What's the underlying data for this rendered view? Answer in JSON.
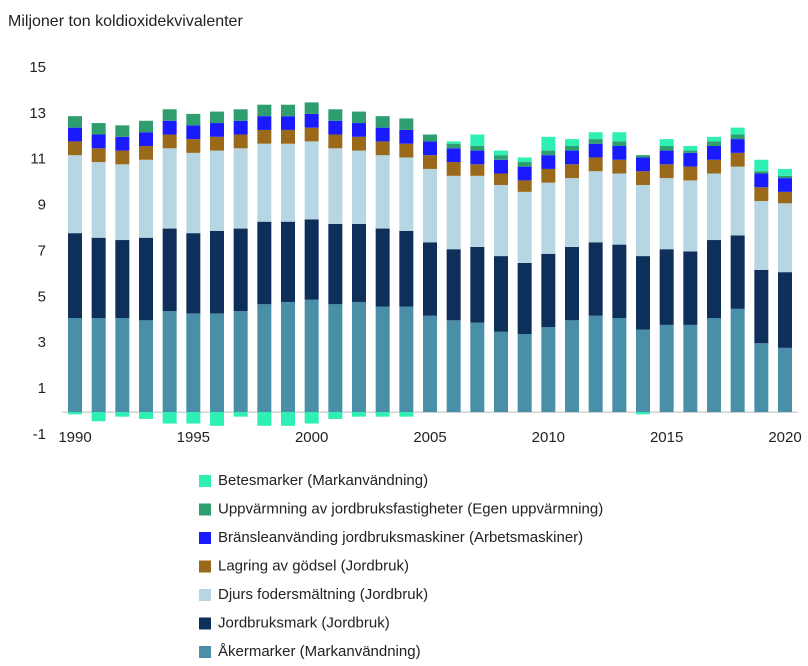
{
  "chart_data": {
    "type": "stacked_bar",
    "title": "Miljoner ton koldioxidekvivalenter",
    "categories": [
      1990,
      null,
      null,
      null,
      null,
      1995,
      null,
      null,
      null,
      null,
      2000,
      null,
      null,
      null,
      null,
      2005,
      null,
      null,
      null,
      null,
      2010,
      null,
      null,
      null,
      null,
      2015,
      null,
      null,
      null,
      null,
      2020
    ],
    "ylim": [
      -1,
      15
    ],
    "yticks": [
      -1,
      1,
      3,
      5,
      7,
      9,
      11,
      13,
      15
    ],
    "grid": false,
    "legend": "bottom",
    "series": [
      {
        "name": "Betesmarker (Markanvändning)",
        "color": "#2ef0b4",
        "values": [
          -0.1,
          -0.4,
          -0.2,
          -0.3,
          -0.5,
          -0.5,
          -0.6,
          -0.2,
          -0.6,
          -0.6,
          -0.5,
          -0.3,
          -0.2,
          -0.2,
          -0.2,
          0,
          0.1,
          0.5,
          0.2,
          0.2,
          0.6,
          0.3,
          0.3,
          0.4,
          -0.1,
          0.3,
          0.2,
          0.2,
          0.3,
          0.5,
          0.3
        ]
      },
      {
        "name": "Uppvärmning av jordbruksfastigheter (Egen uppvärmning)",
        "color": "#2e9e6e",
        "values": [
          0.5,
          0.5,
          0.5,
          0.5,
          0.5,
          0.5,
          0.5,
          0.5,
          0.5,
          0.5,
          0.5,
          0.5,
          0.5,
          0.5,
          0.5,
          0.3,
          0.2,
          0.2,
          0.2,
          0.2,
          0.2,
          0.2,
          0.2,
          0.2,
          0.1,
          0.2,
          0.1,
          0.2,
          0.2,
          0.1,
          0.1
        ]
      },
      {
        "name": "Bränsleanvänding  jordbruksmaskiner (Arbetsmaskiner)",
        "color": "#1a1aff",
        "values": [
          0.6,
          0.6,
          0.6,
          0.6,
          0.6,
          0.6,
          0.6,
          0.6,
          0.6,
          0.6,
          0.6,
          0.6,
          0.6,
          0.6,
          0.6,
          0.6,
          0.6,
          0.6,
          0.6,
          0.6,
          0.6,
          0.6,
          0.6,
          0.6,
          0.6,
          0.6,
          0.6,
          0.6,
          0.6,
          0.6,
          0.6
        ]
      },
      {
        "name": "Lagring av gödsel (Jordbruk)",
        "color": "#9a6a1a",
        "values": [
          0.6,
          0.6,
          0.6,
          0.6,
          0.6,
          0.6,
          0.6,
          0.6,
          0.6,
          0.6,
          0.6,
          0.6,
          0.6,
          0.6,
          0.6,
          0.6,
          0.6,
          0.5,
          0.5,
          0.5,
          0.6,
          0.6,
          0.6,
          0.6,
          0.6,
          0.6,
          0.6,
          0.6,
          0.6,
          0.6,
          0.5
        ]
      },
      {
        "name": "Djurs fodersmältning (Jordbruk)",
        "color": "#b7d6e3",
        "values": [
          3.4,
          3.3,
          3.3,
          3.4,
          3.5,
          3.5,
          3.5,
          3.5,
          3.4,
          3.4,
          3.4,
          3.3,
          3.2,
          3.2,
          3.2,
          3.2,
          3.2,
          3.1,
          3.1,
          3.1,
          3.1,
          3.0,
          3.1,
          3.1,
          3.1,
          3.1,
          3.1,
          2.9,
          3.0,
          3.0,
          3.0
        ]
      },
      {
        "name": "Jordbruksmark (Jordbruk)",
        "color": "#0d2f5a",
        "values": [
          3.7,
          3.5,
          3.4,
          3.6,
          3.6,
          3.5,
          3.6,
          3.6,
          3.6,
          3.5,
          3.5,
          3.5,
          3.4,
          3.4,
          3.3,
          3.2,
          3.1,
          3.3,
          3.3,
          3.1,
          3.2,
          3.2,
          3.2,
          3.2,
          3.2,
          3.3,
          3.2,
          3.4,
          3.2,
          3.2,
          3.3
        ]
      },
      {
        "name": "Åkermarker (Markanvändning)",
        "color": "#4a8fa8",
        "values": [
          4.1,
          4.1,
          4.1,
          4.0,
          4.4,
          4.3,
          4.3,
          4.4,
          4.7,
          4.8,
          4.9,
          4.7,
          4.8,
          4.6,
          4.6,
          4.2,
          4.0,
          3.9,
          3.5,
          3.4,
          3.7,
          4.0,
          4.2,
          4.1,
          3.6,
          3.8,
          3.8,
          4.1,
          4.5,
          3.0,
          2.8
        ]
      }
    ]
  }
}
